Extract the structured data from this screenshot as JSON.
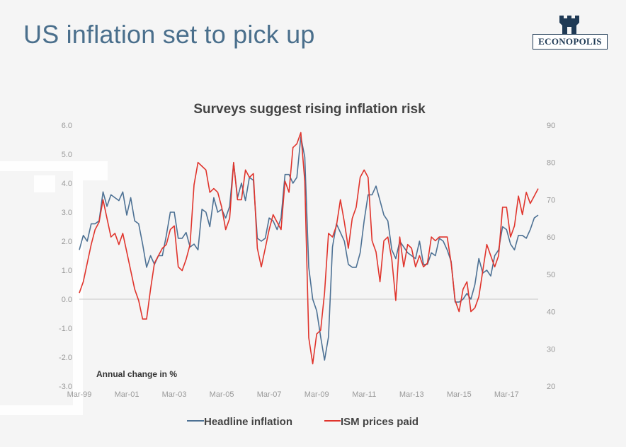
{
  "slide": {
    "title": "US inflation set to pick up",
    "logo_text": "ECONOPOLIS"
  },
  "colors": {
    "title": "#4a6f8c",
    "headline": "#4d7194",
    "ism": "#e0342c",
    "logo": "#1f3a55"
  },
  "icons": {
    "logo": "castle-tower-icon"
  },
  "chart_data": {
    "type": "line",
    "title": "Surveys suggest rising inflation risk",
    "annotation": "Annual change in %",
    "x_ticks": [
      "Mar-99",
      "Mar-01",
      "Mar-03",
      "Mar-05",
      "Mar-07",
      "Mar-09",
      "Mar-11",
      "Mar-13",
      "Mar-15",
      "Mar-17"
    ],
    "y_left": {
      "min": -3.0,
      "max": 6.0,
      "ticks": [
        "6.0",
        "5.0",
        "4.0",
        "3.0",
        "2.0",
        "1.0",
        "0.0",
        "-1.0",
        "-2.0",
        "-3.0"
      ]
    },
    "y_right": {
      "min": 20,
      "max": 90,
      "ticks": [
        "90",
        "80",
        "70",
        "60",
        "50",
        "40",
        "30",
        "20"
      ]
    },
    "x_range": [
      "1999-03",
      "2018-07"
    ],
    "legend": {
      "position": "bottom"
    },
    "grid": "horizontal-zero-line",
    "series": [
      {
        "name": "Headline inflation",
        "axis": "left",
        "color": "#4d7194",
        "points": [
          [
            "1999-03",
            1.7
          ],
          [
            "1999-05",
            2.2
          ],
          [
            "1999-07",
            2.0
          ],
          [
            "1999-09",
            2.6
          ],
          [
            "1999-11",
            2.6
          ],
          [
            "2000-01",
            2.7
          ],
          [
            "2000-03",
            3.7
          ],
          [
            "2000-05",
            3.2
          ],
          [
            "2000-07",
            3.6
          ],
          [
            "2000-09",
            3.5
          ],
          [
            "2000-11",
            3.4
          ],
          [
            "2001-01",
            3.7
          ],
          [
            "2001-03",
            2.9
          ],
          [
            "2001-05",
            3.5
          ],
          [
            "2001-07",
            2.7
          ],
          [
            "2001-09",
            2.6
          ],
          [
            "2001-11",
            1.9
          ],
          [
            "2002-01",
            1.1
          ],
          [
            "2002-03",
            1.5
          ],
          [
            "2002-05",
            1.2
          ],
          [
            "2002-07",
            1.5
          ],
          [
            "2002-09",
            1.5
          ],
          [
            "2002-11",
            2.2
          ],
          [
            "2003-01",
            3.0
          ],
          [
            "2003-03",
            3.0
          ],
          [
            "2003-05",
            2.1
          ],
          [
            "2003-07",
            2.1
          ],
          [
            "2003-09",
            2.3
          ],
          [
            "2003-11",
            1.8
          ],
          [
            "2004-01",
            1.9
          ],
          [
            "2004-03",
            1.7
          ],
          [
            "2004-05",
            3.1
          ],
          [
            "2004-07",
            3.0
          ],
          [
            "2004-09",
            2.5
          ],
          [
            "2004-11",
            3.5
          ],
          [
            "2005-01",
            3.0
          ],
          [
            "2005-03",
            3.1
          ],
          [
            "2005-05",
            2.8
          ],
          [
            "2005-07",
            3.2
          ],
          [
            "2005-09",
            4.7
          ],
          [
            "2005-11",
            3.5
          ],
          [
            "2006-01",
            4.0
          ],
          [
            "2006-03",
            3.4
          ],
          [
            "2006-05",
            4.2
          ],
          [
            "2006-07",
            4.1
          ],
          [
            "2006-09",
            2.1
          ],
          [
            "2006-11",
            2.0
          ],
          [
            "2007-01",
            2.1
          ],
          [
            "2007-03",
            2.8
          ],
          [
            "2007-05",
            2.7
          ],
          [
            "2007-07",
            2.4
          ],
          [
            "2007-09",
            2.8
          ],
          [
            "2007-11",
            4.3
          ],
          [
            "2008-01",
            4.3
          ],
          [
            "2008-03",
            4.0
          ],
          [
            "2008-05",
            4.2
          ],
          [
            "2008-07",
            5.6
          ],
          [
            "2008-09",
            4.9
          ],
          [
            "2008-11",
            1.1
          ],
          [
            "2009-01",
            0.0
          ],
          [
            "2009-03",
            -0.4
          ],
          [
            "2009-05",
            -1.3
          ],
          [
            "2009-07",
            -2.1
          ],
          [
            "2009-09",
            -1.3
          ],
          [
            "2009-11",
            1.8
          ],
          [
            "2010-01",
            2.6
          ],
          [
            "2010-03",
            2.3
          ],
          [
            "2010-05",
            2.0
          ],
          [
            "2010-07",
            1.2
          ],
          [
            "2010-09",
            1.1
          ],
          [
            "2010-11",
            1.1
          ],
          [
            "2011-01",
            1.6
          ],
          [
            "2011-03",
            2.7
          ],
          [
            "2011-05",
            3.6
          ],
          [
            "2011-07",
            3.6
          ],
          [
            "2011-09",
            3.9
          ],
          [
            "2011-11",
            3.4
          ],
          [
            "2012-01",
            2.9
          ],
          [
            "2012-03",
            2.7
          ],
          [
            "2012-05",
            1.7
          ],
          [
            "2012-07",
            1.4
          ],
          [
            "2012-09",
            2.0
          ],
          [
            "2012-11",
            1.8
          ],
          [
            "2013-01",
            1.6
          ],
          [
            "2013-03",
            1.5
          ],
          [
            "2013-05",
            1.4
          ],
          [
            "2013-07",
            2.0
          ],
          [
            "2013-09",
            1.2
          ],
          [
            "2013-11",
            1.2
          ],
          [
            "2014-01",
            1.6
          ],
          [
            "2014-03",
            1.5
          ],
          [
            "2014-05",
            2.1
          ],
          [
            "2014-07",
            2.0
          ],
          [
            "2014-09",
            1.7
          ],
          [
            "2014-11",
            1.3
          ],
          [
            "2015-01",
            -0.1
          ],
          [
            "2015-03",
            -0.1
          ],
          [
            "2015-05",
            0.0
          ],
          [
            "2015-07",
            0.2
          ],
          [
            "2015-09",
            0.0
          ],
          [
            "2015-11",
            0.5
          ],
          [
            "2016-01",
            1.4
          ],
          [
            "2016-03",
            0.9
          ],
          [
            "2016-05",
            1.0
          ],
          [
            "2016-07",
            0.8
          ],
          [
            "2016-09",
            1.5
          ],
          [
            "2016-11",
            1.7
          ],
          [
            "2017-01",
            2.5
          ],
          [
            "2017-03",
            2.4
          ],
          [
            "2017-05",
            1.9
          ],
          [
            "2017-07",
            1.7
          ],
          [
            "2017-09",
            2.2
          ],
          [
            "2017-11",
            2.2
          ],
          [
            "2018-01",
            2.1
          ],
          [
            "2018-03",
            2.4
          ],
          [
            "2018-05",
            2.8
          ],
          [
            "2018-07",
            2.9
          ]
        ]
      },
      {
        "name": "ISM prices paid",
        "axis": "right",
        "color": "#e0342c",
        "points": [
          [
            "1999-03",
            45
          ],
          [
            "1999-05",
            48
          ],
          [
            "1999-07",
            53
          ],
          [
            "1999-09",
            58
          ],
          [
            "1999-11",
            62
          ],
          [
            "2000-01",
            64
          ],
          [
            "2000-03",
            70
          ],
          [
            "2000-05",
            65
          ],
          [
            "2000-07",
            60
          ],
          [
            "2000-09",
            61
          ],
          [
            "2000-11",
            58
          ],
          [
            "2001-01",
            61
          ],
          [
            "2001-03",
            56
          ],
          [
            "2001-05",
            51
          ],
          [
            "2001-07",
            46
          ],
          [
            "2001-09",
            43
          ],
          [
            "2001-11",
            38
          ],
          [
            "2002-01",
            38
          ],
          [
            "2002-03",
            46
          ],
          [
            "2002-05",
            53
          ],
          [
            "2002-07",
            55
          ],
          [
            "2002-09",
            57
          ],
          [
            "2002-11",
            58
          ],
          [
            "2003-01",
            62
          ],
          [
            "2003-03",
            63
          ],
          [
            "2003-05",
            52
          ],
          [
            "2003-07",
            51
          ],
          [
            "2003-09",
            54
          ],
          [
            "2003-11",
            58
          ],
          [
            "2004-01",
            74
          ],
          [
            "2004-03",
            80
          ],
          [
            "2004-05",
            79
          ],
          [
            "2004-07",
            78
          ],
          [
            "2004-09",
            72
          ],
          [
            "2004-11",
            73
          ],
          [
            "2005-01",
            72
          ],
          [
            "2005-03",
            68
          ],
          [
            "2005-05",
            62
          ],
          [
            "2005-07",
            65
          ],
          [
            "2005-09",
            80
          ],
          [
            "2005-11",
            70
          ],
          [
            "2006-01",
            70
          ],
          [
            "2006-03",
            78
          ],
          [
            "2006-05",
            76
          ],
          [
            "2006-07",
            77
          ],
          [
            "2006-09",
            57
          ],
          [
            "2006-11",
            52
          ],
          [
            "2007-01",
            57
          ],
          [
            "2007-03",
            62
          ],
          [
            "2007-05",
            66
          ],
          [
            "2007-07",
            64
          ],
          [
            "2007-09",
            62
          ],
          [
            "2007-11",
            75
          ],
          [
            "2008-01",
            72
          ],
          [
            "2008-03",
            84
          ],
          [
            "2008-05",
            85
          ],
          [
            "2008-07",
            88
          ],
          [
            "2008-09",
            75
          ],
          [
            "2008-11",
            33
          ],
          [
            "2009-01",
            26
          ],
          [
            "2009-03",
            34
          ],
          [
            "2009-05",
            35
          ],
          [
            "2009-07",
            45
          ],
          [
            "2009-09",
            61
          ],
          [
            "2009-11",
            60
          ],
          [
            "2010-01",
            63
          ],
          [
            "2010-03",
            70
          ],
          [
            "2010-05",
            64
          ],
          [
            "2010-07",
            57
          ],
          [
            "2010-09",
            65
          ],
          [
            "2010-11",
            68
          ],
          [
            "2011-01",
            76
          ],
          [
            "2011-03",
            78
          ],
          [
            "2011-05",
            76
          ],
          [
            "2011-07",
            59
          ],
          [
            "2011-09",
            56
          ],
          [
            "2011-11",
            48
          ],
          [
            "2012-01",
            59
          ],
          [
            "2012-03",
            60
          ],
          [
            "2012-05",
            54
          ],
          [
            "2012-07",
            43
          ],
          [
            "2012-09",
            60
          ],
          [
            "2012-11",
            52
          ],
          [
            "2013-01",
            58
          ],
          [
            "2013-03",
            57
          ],
          [
            "2013-05",
            52
          ],
          [
            "2013-07",
            55
          ],
          [
            "2013-09",
            52
          ],
          [
            "2013-11",
            53
          ],
          [
            "2014-01",
            60
          ],
          [
            "2014-03",
            59
          ],
          [
            "2014-05",
            60
          ],
          [
            "2014-07",
            60
          ],
          [
            "2014-09",
            60
          ],
          [
            "2014-11",
            53
          ],
          [
            "2015-01",
            43
          ],
          [
            "2015-03",
            40
          ],
          [
            "2015-05",
            46
          ],
          [
            "2015-07",
            48
          ],
          [
            "2015-09",
            40
          ],
          [
            "2015-11",
            41
          ],
          [
            "2016-01",
            44
          ],
          [
            "2016-03",
            51
          ],
          [
            "2016-05",
            58
          ],
          [
            "2016-07",
            55
          ],
          [
            "2016-09",
            52
          ],
          [
            "2016-11",
            55
          ],
          [
            "2017-01",
            68
          ],
          [
            "2017-03",
            68
          ],
          [
            "2017-05",
            60
          ],
          [
            "2017-07",
            63
          ],
          [
            "2017-09",
            71
          ],
          [
            "2017-11",
            66
          ],
          [
            "2018-01",
            72
          ],
          [
            "2018-03",
            69
          ],
          [
            "2018-05",
            71
          ],
          [
            "2018-07",
            73
          ]
        ]
      }
    ]
  }
}
